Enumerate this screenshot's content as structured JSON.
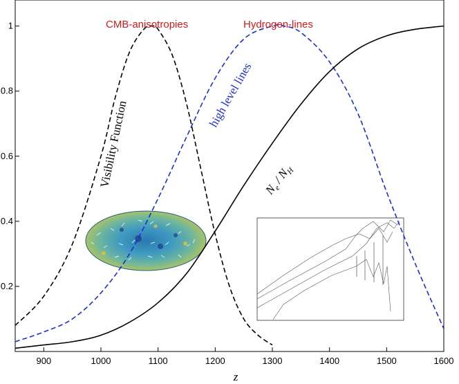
{
  "chart_data": {
    "type": "line",
    "xlabel": "z",
    "ylabel": "",
    "xlim": [
      850,
      1600
    ],
    "ylim": [
      0,
      1.08
    ],
    "xticks": [
      900,
      1000,
      1100,
      1200,
      1300,
      1400,
      1500,
      1600
    ],
    "yticks": [
      0.2,
      0.4,
      0.6,
      0.8,
      1
    ],
    "grid": false,
    "series": [
      {
        "name": "Visibility Function",
        "style": "dashed",
        "color": "#000000",
        "x": [
          850,
          900,
          950,
          1000,
          1025,
          1050,
          1075,
          1090,
          1100,
          1125,
          1150,
          1175,
          1200,
          1225,
          1250,
          1275,
          1300
        ],
        "y": [
          0.08,
          0.17,
          0.33,
          0.6,
          0.78,
          0.92,
          0.99,
          1.0,
          0.99,
          0.91,
          0.76,
          0.56,
          0.36,
          0.2,
          0.1,
          0.05,
          0.02
        ]
      },
      {
        "name": "high level lines",
        "style": "dashed",
        "color": "#1a2fd0",
        "x": [
          850,
          900,
          950,
          1000,
          1050,
          1100,
          1150,
          1200,
          1250,
          1300,
          1320,
          1350,
          1400,
          1450,
          1500,
          1550,
          1600
        ],
        "y": [
          0.03,
          0.06,
          0.1,
          0.18,
          0.3,
          0.47,
          0.66,
          0.84,
          0.96,
          1.0,
          1.0,
          0.98,
          0.89,
          0.73,
          0.49,
          0.27,
          0.07
        ]
      },
      {
        "name": "N_e / N_H",
        "style": "solid",
        "color": "#000000",
        "x": [
          850,
          900,
          950,
          1000,
          1050,
          1100,
          1150,
          1200,
          1250,
          1300,
          1350,
          1400,
          1450,
          1500,
          1550,
          1600
        ],
        "y": [
          0.01,
          0.02,
          0.03,
          0.05,
          0.09,
          0.15,
          0.24,
          0.37,
          0.51,
          0.64,
          0.76,
          0.86,
          0.93,
          0.97,
          0.99,
          1.0
        ]
      }
    ]
  },
  "annotations": {
    "cmb_label": "CMB-anisotropies",
    "hydrogen_label": "Hydrogen-lines",
    "visibility_label": "Visibility Function",
    "high_level_label": "high level lines",
    "ne_nh_label": "N",
    "ne_sub": "e",
    "nh_slash": " / N",
    "nh_sub": "H"
  },
  "colors": {
    "red": "#d21a1a",
    "blue": "#1a2fd0",
    "black": "#000000"
  }
}
